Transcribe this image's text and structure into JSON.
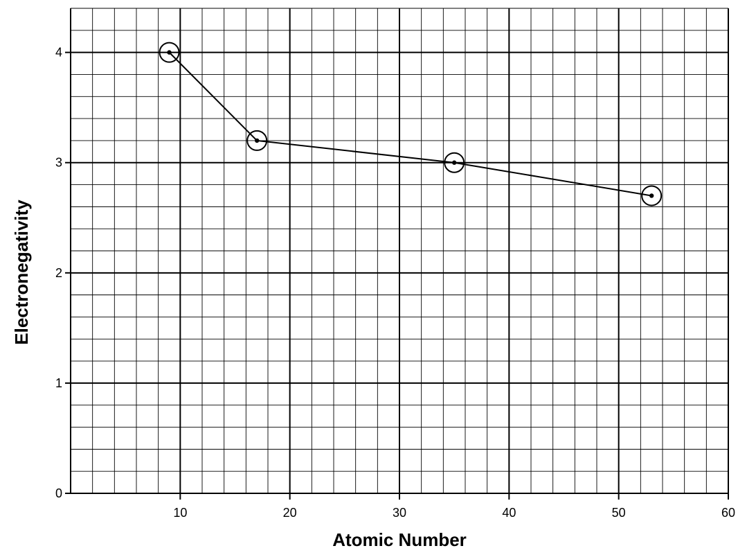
{
  "chart_data": {
    "type": "line",
    "title": "",
    "xlabel": "Atomic Number",
    "ylabel": "Electronegativity",
    "xlim": [
      0,
      60
    ],
    "ylim": [
      0,
      4.4
    ],
    "x_ticks": [
      10,
      20,
      30,
      40,
      50,
      60
    ],
    "y_ticks": [
      0,
      1,
      2,
      3,
      4
    ],
    "x_tick_labels": [
      "10",
      "20",
      "30",
      "40",
      "50",
      "60"
    ],
    "y_tick_labels": [
      "0",
      "1",
      "2",
      "3",
      "4"
    ],
    "grid": true,
    "minor_grid_step": {
      "x": 2,
      "y": 0.2
    },
    "major_grid_step": {
      "x": 10,
      "y": 1
    },
    "series": [
      {
        "points": [
          {
            "x": 9,
            "y": 4.0
          },
          {
            "x": 17,
            "y": 3.2
          },
          {
            "x": 35,
            "y": 3.0
          },
          {
            "x": 53,
            "y": 2.7
          }
        ],
        "marker": "circled-dot",
        "color": "#000000"
      }
    ]
  }
}
